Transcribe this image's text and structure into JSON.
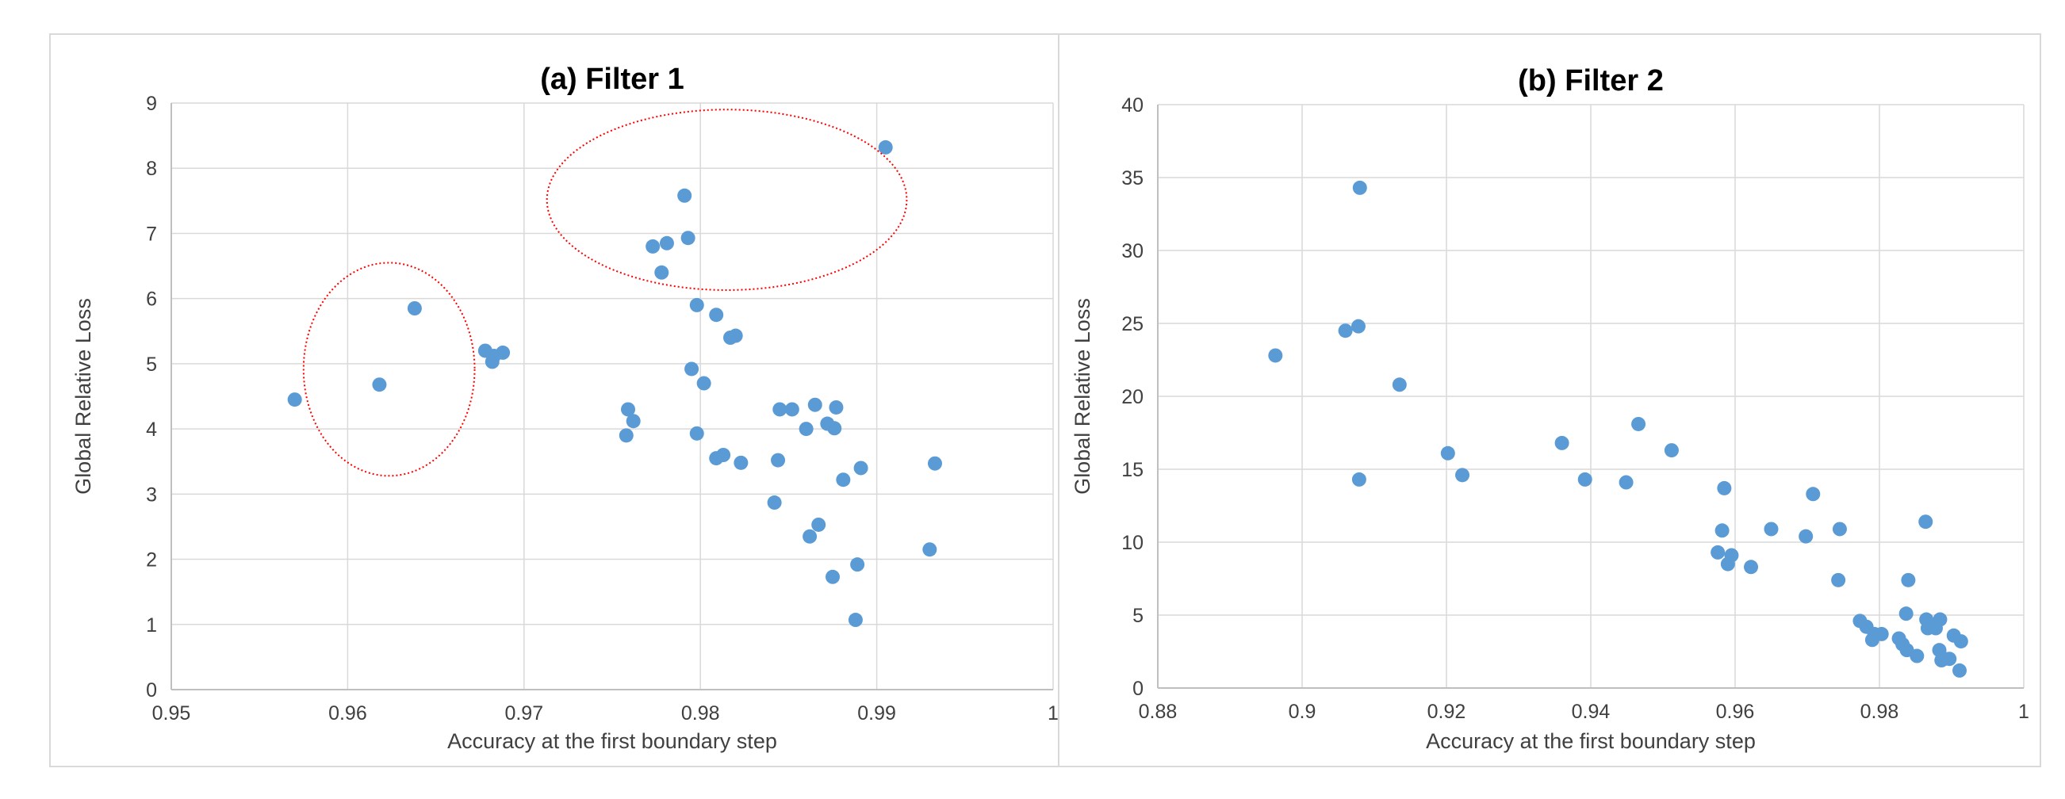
{
  "colors": {
    "point": "#5b9bd5",
    "highlight": "#ff0000",
    "grid": "#d9d9d9"
  },
  "chart_data": [
    {
      "type": "scatter",
      "title": "(a) Filter 1",
      "xlabel": "Accuracy at the first boundary step",
      "ylabel": "Global Relative Loss",
      "xlim": [
        0.95,
        1
      ],
      "ylim": [
        0,
        9
      ],
      "x_ticks": [
        0.95,
        0.96,
        0.97,
        0.98,
        0.99,
        1
      ],
      "x_tick_labels": [
        "0.95",
        "0.96",
        "0.97",
        "0.98",
        "0.99",
        "1"
      ],
      "y_ticks": [
        0,
        1,
        2,
        3,
        4,
        5,
        6,
        7,
        8,
        9
      ],
      "y_tick_labels": [
        "0",
        "1",
        "2",
        "3",
        "4",
        "5",
        "6",
        "7",
        "8",
        "9"
      ],
      "grid": "vertical-and-horizontal",
      "legend": "none",
      "highlight_regions": [
        {
          "shape": "ellipse",
          "x_range": [
            0.9575,
            0.9672
          ],
          "y_range": [
            3.28,
            6.55
          ]
        },
        {
          "shape": "ellipse",
          "x_range": [
            0.9713,
            0.9917
          ],
          "y_range": [
            6.13,
            8.9
          ]
        }
      ],
      "series": [
        {
          "points": [
            [
              0.957,
              4.45
            ],
            [
              0.9618,
              4.68
            ],
            [
              0.9638,
              5.85
            ],
            [
              0.9678,
              5.2
            ],
            [
              0.9682,
              5.03
            ],
            [
              0.9683,
              5.12
            ],
            [
              0.9688,
              5.17
            ],
            [
              0.9758,
              3.9
            ],
            [
              0.9759,
              4.3
            ],
            [
              0.9762,
              4.12
            ],
            [
              0.9773,
              6.8
            ],
            [
              0.9778,
              6.4
            ],
            [
              0.9781,
              6.85
            ],
            [
              0.9791,
              7.58
            ],
            [
              0.9793,
              6.93
            ],
            [
              0.9795,
              4.92
            ],
            [
              0.9798,
              5.9
            ],
            [
              0.9798,
              3.93
            ],
            [
              0.9802,
              4.7
            ],
            [
              0.9809,
              5.75
            ],
            [
              0.9809,
              3.55
            ],
            [
              0.9813,
              3.6
            ],
            [
              0.9817,
              5.4
            ],
            [
              0.982,
              5.43
            ],
            [
              0.9823,
              3.48
            ],
            [
              0.9842,
              2.87
            ],
            [
              0.9844,
              3.52
            ],
            [
              0.9845,
              4.3
            ],
            [
              0.9852,
              4.3
            ],
            [
              0.986,
              4.0
            ],
            [
              0.9862,
              2.35
            ],
            [
              0.9865,
              4.37
            ],
            [
              0.9867,
              2.53
            ],
            [
              0.9872,
              4.08
            ],
            [
              0.9875,
              1.73
            ],
            [
              0.9876,
              4.01
            ],
            [
              0.9877,
              4.33
            ],
            [
              0.9881,
              3.22
            ],
            [
              0.9888,
              1.07
            ],
            [
              0.9889,
              1.92
            ],
            [
              0.9891,
              3.4
            ],
            [
              0.9905,
              8.32
            ],
            [
              0.993,
              2.15
            ],
            [
              0.9933,
              3.47
            ]
          ]
        }
      ]
    },
    {
      "type": "scatter",
      "title": "(b) Filter 2",
      "xlabel": "Accuracy at the first boundary step",
      "ylabel": "Global Relative Loss",
      "xlim": [
        0.88,
        1
      ],
      "ylim": [
        0,
        40
      ],
      "x_ticks": [
        0.88,
        0.9,
        0.92,
        0.94,
        0.96,
        0.98,
        1
      ],
      "x_tick_labels": [
        "0.88",
        "0.9",
        "0.92",
        "0.94",
        "0.96",
        "0.98",
        "1"
      ],
      "y_ticks": [
        0,
        5,
        10,
        15,
        20,
        25,
        30,
        35,
        40
      ],
      "y_tick_labels": [
        "0",
        "5",
        "10",
        "15",
        "20",
        "25",
        "30",
        "35",
        "40"
      ],
      "grid": "vertical-and-horizontal",
      "legend": "none",
      "highlight_regions": [],
      "series": [
        {
          "points": [
            [
              0.8963,
              22.8
            ],
            [
              0.906,
              24.5
            ],
            [
              0.9078,
              24.8
            ],
            [
              0.908,
              34.3
            ],
            [
              0.9079,
              14.3
            ],
            [
              0.9135,
              20.8
            ],
            [
              0.9202,
              16.1
            ],
            [
              0.9222,
              14.6
            ],
            [
              0.936,
              16.8
            ],
            [
              0.9392,
              14.3
            ],
            [
              0.9449,
              14.1
            ],
            [
              0.9466,
              18.1
            ],
            [
              0.9512,
              16.3
            ],
            [
              0.9576,
              9.3
            ],
            [
              0.9582,
              10.8
            ],
            [
              0.9585,
              13.7
            ],
            [
              0.959,
              8.5
            ],
            [
              0.9595,
              9.1
            ],
            [
              0.9622,
              8.3
            ],
            [
              0.965,
              10.9
            ],
            [
              0.9698,
              10.4
            ],
            [
              0.9708,
              13.3
            ],
            [
              0.9743,
              7.4
            ],
            [
              0.9745,
              10.9
            ],
            [
              0.9773,
              4.6
            ],
            [
              0.9782,
              4.2
            ],
            [
              0.979,
              3.3
            ],
            [
              0.9793,
              3.7
            ],
            [
              0.9803,
              3.7
            ],
            [
              0.9827,
              3.4
            ],
            [
              0.9832,
              3.0
            ],
            [
              0.9837,
              5.1
            ],
            [
              0.9838,
              2.6
            ],
            [
              0.984,
              7.4
            ],
            [
              0.9852,
              2.2
            ],
            [
              0.9864,
              11.4
            ],
            [
              0.9865,
              4.7
            ],
            [
              0.9867,
              4.1
            ],
            [
              0.9875,
              4.2
            ],
            [
              0.9878,
              4.1
            ],
            [
              0.9883,
              2.6
            ],
            [
              0.9884,
              4.7
            ],
            [
              0.9886,
              1.9
            ],
            [
              0.989,
              2.0
            ],
            [
              0.9897,
              2.0
            ],
            [
              0.9903,
              3.6
            ],
            [
              0.9911,
              1.2
            ],
            [
              0.9913,
              3.2
            ]
          ]
        }
      ]
    }
  ]
}
